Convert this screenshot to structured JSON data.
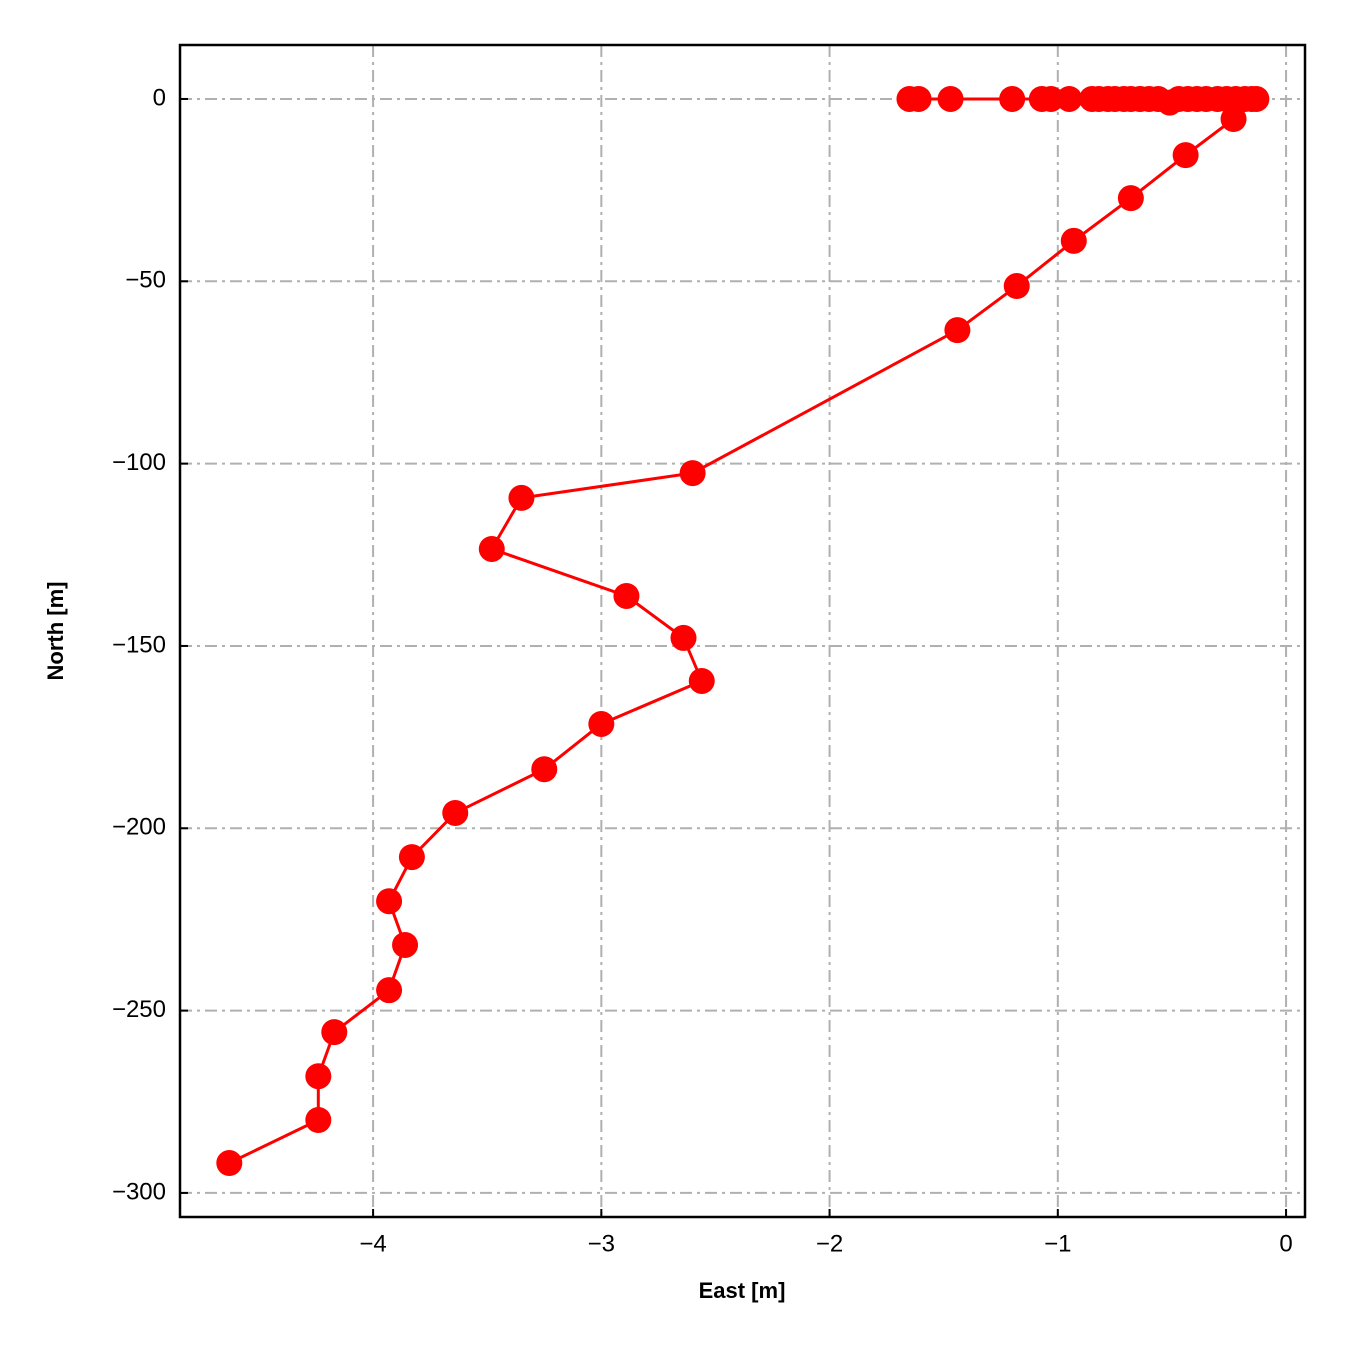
{
  "chart_data": {
    "type": "line",
    "xlabel": "East [m]",
    "ylabel": "North [m]",
    "x": [
      -1.65,
      -1.61,
      -1.47,
      -1.2,
      -1.07,
      -1.03,
      -0.95,
      -0.85,
      -0.82,
      -0.78,
      -0.75,
      -0.71,
      -0.68,
      -0.64,
      -0.6,
      -0.56,
      -0.51,
      -0.47,
      -0.43,
      -0.39,
      -0.35,
      -0.3,
      -0.26,
      -0.22,
      -0.18,
      -0.15,
      -0.13,
      -0.23,
      -0.44,
      -0.68,
      -0.93,
      -1.18,
      -1.44,
      -2.6,
      -3.35,
      -3.48,
      -2.89,
      -2.64,
      -2.56,
      -3.0,
      -3.25,
      -3.64,
      -3.83,
      -3.93,
      -3.86,
      -3.93,
      -4.17,
      -4.24,
      -4.24,
      -4.63
    ],
    "series": [
      {
        "color": "#ff0000",
        "values": [
          0,
          0,
          0,
          0,
          0,
          0,
          0,
          0,
          0,
          0,
          0,
          0,
          0,
          0,
          0,
          0,
          -1,
          0,
          0,
          0,
          0,
          0,
          0,
          0,
          0,
          0,
          0,
          -5.5,
          -15.4,
          -27.2,
          -38.9,
          -51.3,
          -63.4,
          -102.6,
          -109.4,
          -123.4,
          -136.3,
          -147.8,
          -159.6,
          -171.4,
          -183.8,
          -195.8,
          -207.9,
          -220.0,
          -232.0,
          -244.4,
          -255.9,
          -268.0,
          -280.0,
          -291.8
        ]
      }
    ],
    "xlim": [
      -4.846,
      0.083
    ],
    "ylim": [
      -306.6,
      14.8
    ],
    "xticks": [
      {
        "value": -4,
        "label": "−4"
      },
      {
        "value": -3,
        "label": "−3"
      },
      {
        "value": -2,
        "label": "−2"
      },
      {
        "value": -1,
        "label": "−1"
      },
      0
    ],
    "yticks": [
      0,
      {
        "value": -50,
        "label": "−50"
      },
      {
        "value": -100,
        "label": "−100"
      },
      {
        "value": -150,
        "label": "−150"
      },
      {
        "value": -200,
        "label": "−200"
      },
      {
        "value": -250,
        "label": "−250"
      },
      {
        "value": -300,
        "label": "−300"
      }
    ],
    "grid": true
  }
}
